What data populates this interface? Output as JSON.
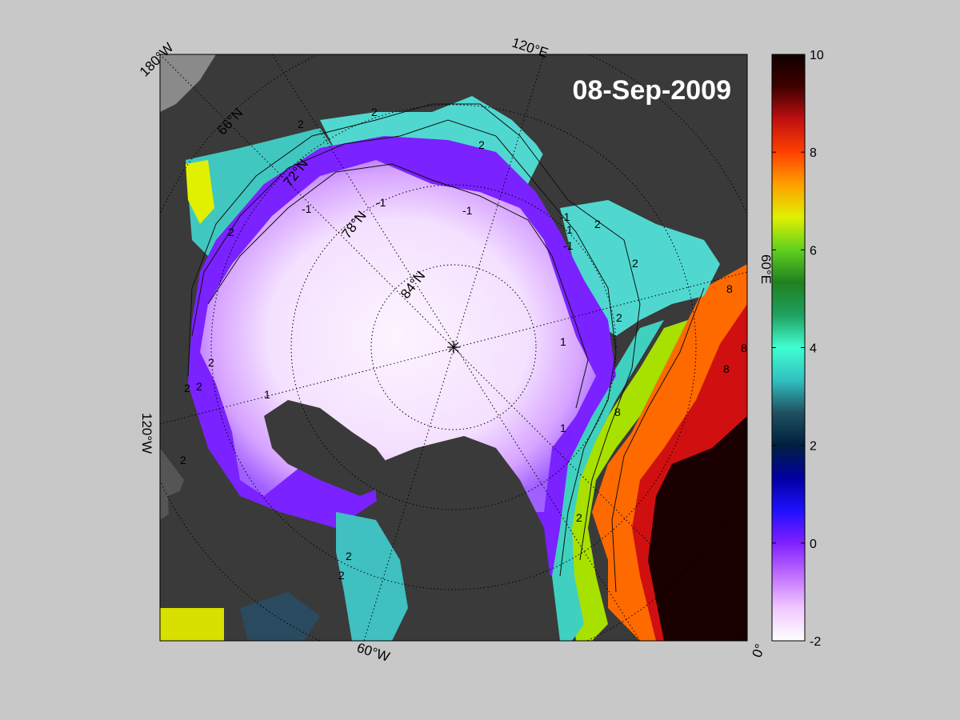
{
  "map": {
    "date": "08-Sep-2009",
    "border_labels": {
      "w180": "180°W",
      "e120": "120°E",
      "e60": "60°E",
      "w120": "120°W",
      "w60": "60°W",
      "zero": "0°"
    },
    "latitude_labels": {
      "n66": "66°N",
      "n72": "72°N",
      "n78": "78°N",
      "n84": "84°N"
    },
    "contour_labels": [
      "-1",
      "-1",
      "-1",
      "-1",
      "-1",
      "1",
      "1",
      "1",
      "1",
      "2",
      "2",
      "2",
      "2",
      "2",
      "2",
      "2",
      "2",
      "2",
      "2",
      "2",
      "2",
      "2",
      "2",
      "8",
      "8",
      "8",
      "8"
    ]
  },
  "colorbar": {
    "ticks": [
      "10",
      "8",
      "6",
      "4",
      "2",
      "0",
      "-2"
    ],
    "min": -2,
    "max": 10,
    "colors": [
      "#ffffff",
      "#f0c8ff",
      "#c070ff",
      "#8020ff",
      "#2010ff",
      "#0000a0",
      "#002040",
      "#205060",
      "#30c0c0",
      "#40ffd0",
      "#20a060",
      "#208020",
      "#60d020",
      "#e0f000",
      "#ffa000",
      "#ff4000",
      "#c01010",
      "#400000",
      "#100000"
    ]
  }
}
